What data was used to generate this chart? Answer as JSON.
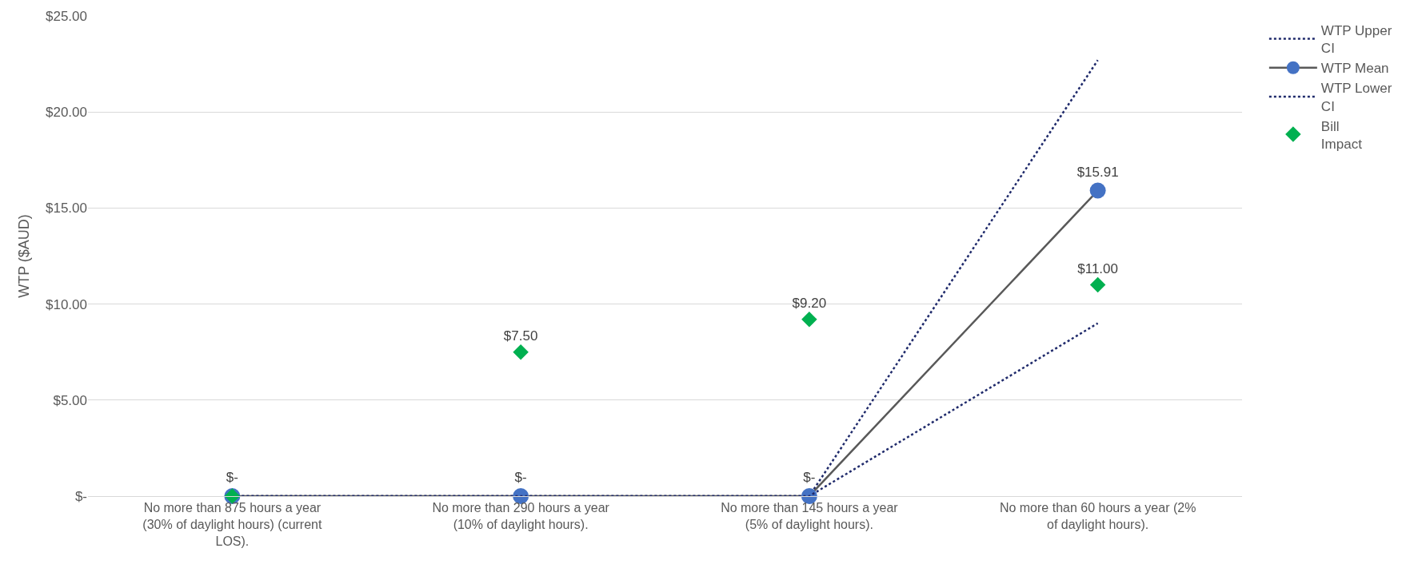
{
  "chart_data": {
    "type": "line",
    "ylabel": "WTP ($AUD)",
    "categories": [
      "No more than 875 hours a year (30% of daylight hours) (current LOS).",
      "No more than 290 hours a year (10% of daylight hours).",
      "No more than 145 hours a year (5% of daylight hours).",
      "No more than 60 hours a year (2% of daylight hours)."
    ],
    "series": [
      {
        "name": "WTP Upper CI",
        "color": "#1f2a6b",
        "line_style": "dotted",
        "marker": "none",
        "values": [
          0,
          0,
          0,
          22.7
        ]
      },
      {
        "name": "WTP Mean",
        "color": "#595959",
        "colors": [
          "#4472c4",
          "#4472c4",
          "#4472c4",
          "#4472c4"
        ],
        "line_style": "solid",
        "marker": "circle",
        "values": [
          0,
          0,
          0,
          15.91
        ],
        "value_labels": [
          "$-",
          "$-",
          "$-",
          "$15.91"
        ]
      },
      {
        "name": "WTP Lower CI",
        "color": "#1f2a6b",
        "line_style": "dotted",
        "marker": "none",
        "values": [
          0,
          0,
          0,
          9.0
        ]
      },
      {
        "name": "Bill Impact",
        "type": "scatter",
        "color": "#00b050",
        "marker": "diamond",
        "values": [
          0,
          7.5,
          9.2,
          11.0
        ],
        "value_labels": [
          null,
          "$7.50",
          "$9.20",
          "$11.00"
        ]
      }
    ],
    "ylim": [
      0,
      25
    ],
    "yticks": [
      {
        "value": 0,
        "label": "$-"
      },
      {
        "value": 5,
        "label": "$5.00"
      },
      {
        "value": 10,
        "label": "$10.00"
      },
      {
        "value": 15,
        "label": "$15.00"
      },
      {
        "value": 20,
        "label": "$20.00"
      },
      {
        "value": 25,
        "label": "$25.00"
      }
    ],
    "grid": "y",
    "legend": "right"
  }
}
